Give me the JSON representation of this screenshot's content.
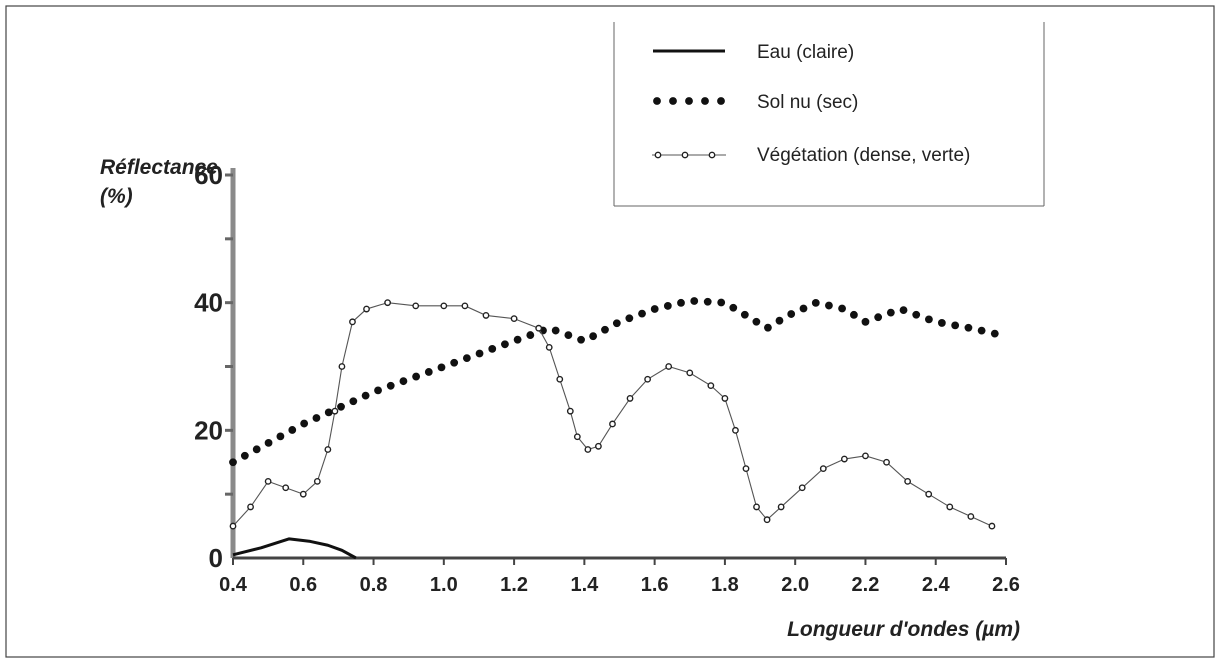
{
  "chart_data": {
    "type": "line",
    "xlabel": "Longueur d'ondes (µm)",
    "ylabel_line1": "Réflectance",
    "ylabel_line2": "(%)",
    "xlim": [
      0.4,
      2.6
    ],
    "ylim": [
      0,
      60
    ],
    "x_ticks": [
      "0.4",
      "0.6",
      "0.8",
      "1.0",
      "1.2",
      "1.4",
      "1.6",
      "1.8",
      "2.0",
      "2.2",
      "2.4",
      "2.6"
    ],
    "y_ticks": [
      "0",
      "20",
      "40",
      "60"
    ],
    "legend_position": "top-right",
    "series": [
      {
        "name": "Eau (claire)",
        "style": "solid",
        "points": [
          [
            0.4,
            0.5
          ],
          [
            0.48,
            1.6
          ],
          [
            0.56,
            3.0
          ],
          [
            0.62,
            2.6
          ],
          [
            0.67,
            2.0
          ],
          [
            0.71,
            1.2
          ],
          [
            0.75,
            0
          ]
        ]
      },
      {
        "name": "Sol nu (sec)",
        "style": "dotted",
        "points": [
          [
            0.4,
            15
          ],
          [
            0.6,
            21
          ],
          [
            0.8,
            26
          ],
          [
            1.0,
            30
          ],
          [
            1.2,
            34
          ],
          [
            1.3,
            36
          ],
          [
            1.4,
            34
          ],
          [
            1.5,
            37
          ],
          [
            1.6,
            39
          ],
          [
            1.7,
            40.3
          ],
          [
            1.8,
            40
          ],
          [
            1.86,
            38
          ],
          [
            1.92,
            36
          ],
          [
            1.98,
            38
          ],
          [
            2.06,
            40
          ],
          [
            2.14,
            39
          ],
          [
            2.2,
            37
          ],
          [
            2.3,
            39
          ],
          [
            2.4,
            37
          ],
          [
            2.5,
            36
          ],
          [
            2.58,
            35
          ]
        ]
      },
      {
        "name": "Végétation (dense, verte)",
        "style": "line-circle",
        "points": [
          [
            0.4,
            5
          ],
          [
            0.45,
            8
          ],
          [
            0.5,
            12
          ],
          [
            0.55,
            11
          ],
          [
            0.6,
            10
          ],
          [
            0.64,
            12
          ],
          [
            0.67,
            17
          ],
          [
            0.69,
            23
          ],
          [
            0.71,
            30
          ],
          [
            0.74,
            37
          ],
          [
            0.78,
            39
          ],
          [
            0.84,
            40
          ],
          [
            0.92,
            39.5
          ],
          [
            1.0,
            39.5
          ],
          [
            1.06,
            39.5
          ],
          [
            1.12,
            38
          ],
          [
            1.2,
            37.5
          ],
          [
            1.27,
            36
          ],
          [
            1.3,
            33
          ],
          [
            1.33,
            28
          ],
          [
            1.36,
            23
          ],
          [
            1.38,
            19
          ],
          [
            1.41,
            17
          ],
          [
            1.44,
            17.5
          ],
          [
            1.48,
            21
          ],
          [
            1.53,
            25
          ],
          [
            1.58,
            28
          ],
          [
            1.64,
            30
          ],
          [
            1.7,
            29
          ],
          [
            1.76,
            27
          ],
          [
            1.8,
            25
          ],
          [
            1.83,
            20
          ],
          [
            1.86,
            14
          ],
          [
            1.89,
            8
          ],
          [
            1.92,
            6
          ],
          [
            1.96,
            8
          ],
          [
            2.02,
            11
          ],
          [
            2.08,
            14
          ],
          [
            2.14,
            15.5
          ],
          [
            2.2,
            16
          ],
          [
            2.26,
            15
          ],
          [
            2.32,
            12
          ],
          [
            2.38,
            10
          ],
          [
            2.44,
            8
          ],
          [
            2.5,
            6.5
          ],
          [
            2.56,
            5
          ]
        ]
      }
    ]
  }
}
